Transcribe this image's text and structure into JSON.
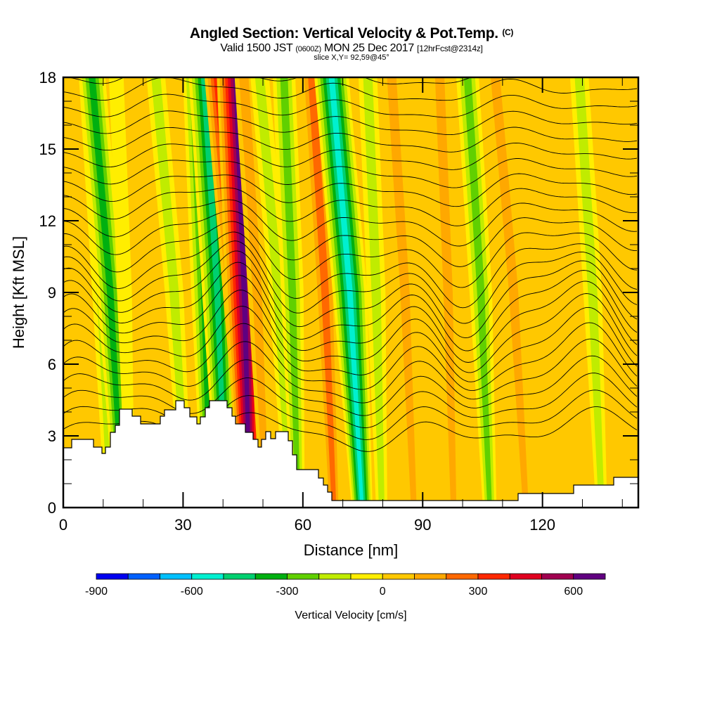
{
  "header": {
    "title": "Angled Section: Vertical Velocity & Pot.Temp.",
    "title_mark": "(C)",
    "valid_prefix": "Valid 1500 JST",
    "valid_utc": "(0600Z)",
    "valid_date": "MON 25 Dec 2017",
    "forecast": "[12hrFcst@2314z]",
    "slice": "slice X,Y= 92,59@45°"
  },
  "chart_data": {
    "type": "heatmap",
    "title": "Angled Section: Vertical Velocity & Pot.Temp.",
    "xlabel": "Distance [nm]",
    "ylabel": "Height [Kft MSL]",
    "xlim": [
      0,
      144
    ],
    "ylim": [
      0,
      18
    ],
    "x_ticks": [
      "0",
      "30",
      "60",
      "90",
      "120"
    ],
    "y_ticks": [
      "0",
      "3",
      "6",
      "9",
      "12",
      "15",
      "18"
    ],
    "x_tick_values": [
      0,
      30,
      60,
      90,
      120
    ],
    "y_tick_values": [
      0,
      3,
      6,
      9,
      12,
      15,
      18
    ],
    "colorbar": {
      "label": "Vertical Velocity [cm/s]",
      "boundaries": [
        -900,
        -800,
        -700,
        -600,
        -500,
        -400,
        -300,
        -200,
        -100,
        0,
        100,
        200,
        300,
        400,
        500,
        600,
        700
      ],
      "tick_labels": [
        "-900",
        "-600",
        "-300",
        "0",
        "300",
        "600"
      ],
      "tick_values": [
        -900,
        -600,
        -300,
        0,
        300,
        600
      ],
      "colors": [
        "#0000f0",
        "#0060ff",
        "#00c0ff",
        "#00f0d0",
        "#00d070",
        "#00b010",
        "#60d000",
        "#c0ec00",
        "#ffee00",
        "#ffc800",
        "#ffa800",
        "#ff6800",
        "#ff2800",
        "#e00020",
        "#a00050",
        "#600080"
      ]
    },
    "velocity_columns": [
      {
        "x_nm": 4,
        "value": 50
      },
      {
        "x_nm": 9,
        "value": -150
      },
      {
        "x_nm": 11,
        "value": -350
      },
      {
        "x_nm": 15,
        "value": -50
      },
      {
        "x_nm": 22,
        "value": 50
      },
      {
        "x_nm": 27,
        "value": -150
      },
      {
        "x_nm": 35,
        "value": -350
      },
      {
        "x_nm": 38,
        "value": -450
      },
      {
        "x_nm": 43,
        "value": 450
      },
      {
        "x_nm": 45,
        "value": 650
      },
      {
        "x_nm": 48,
        "value": 150
      },
      {
        "x_nm": 53,
        "value": -150
      },
      {
        "x_nm": 57,
        "value": -250
      },
      {
        "x_nm": 65,
        "value": 250
      },
      {
        "x_nm": 71,
        "value": -550
      },
      {
        "x_nm": 78,
        "value": -150
      },
      {
        "x_nm": 85,
        "value": 150
      },
      {
        "x_nm": 91,
        "value": 50
      },
      {
        "x_nm": 96,
        "value": 150
      },
      {
        "x_nm": 104,
        "value": -250
      },
      {
        "x_nm": 112,
        "value": 150
      },
      {
        "x_nm": 118,
        "value": 50
      },
      {
        "x_nm": 132,
        "value": -150
      },
      {
        "x_nm": 140,
        "value": 50
      }
    ],
    "theta_contour_count": 26,
    "terrain": "white masked region along bottom (elevated to ~4.5 kft near 30-42 nm)"
  },
  "colors": {
    "background": "#ffffff",
    "contour": "#000000",
    "terrain": "#ffffff"
  }
}
